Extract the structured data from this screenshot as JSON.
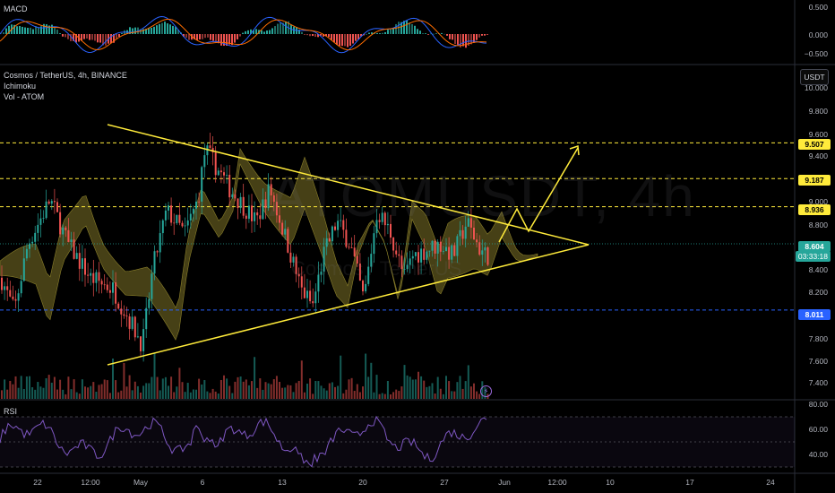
{
  "macd": {
    "title": "MACD",
    "ticks": [
      "0.500",
      "0.000",
      "−0.500"
    ]
  },
  "main": {
    "symbol_line": "Cosmos / TetherUS, 4h, BINANCE",
    "indicators": [
      "Ichimoku",
      "Vol - ATOM"
    ],
    "currency": "USDT",
    "watermark": "ATOMUSDT, 4h",
    "watermark_sub": "Cosmos / TetherUS",
    "ticks": [
      "10.000",
      "9.800",
      "9.600",
      "9.400",
      "9.200",
      "9.000",
      "8.800",
      "8.600",
      "8.400",
      "8.200",
      "8.000",
      "7.800",
      "7.600",
      "7.400"
    ],
    "levels": [
      {
        "value": "9.507",
        "style": "yellow"
      },
      {
        "value": "9.187",
        "style": "yellow"
      },
      {
        "value": "8.936",
        "style": "yellow"
      },
      {
        "value": "8.011",
        "style": "blue"
      }
    ],
    "last_price": "8.604",
    "countdown": "03:33:18",
    "flash_icon": "lightning-icon"
  },
  "rsi": {
    "title": "RSI",
    "ticks": [
      "80.00",
      "60.00",
      "40.00"
    ]
  },
  "xaxis": [
    "22",
    "12:00",
    "May",
    "6",
    "13",
    "20",
    "27",
    "Jun",
    "12:00",
    "10",
    "17",
    "24"
  ],
  "colors": {
    "up": "#26a69a",
    "down": "#ef5350",
    "trendline": "#ffeb3b",
    "cloud": "#6b6322",
    "level_blue": "#2962ff",
    "rsi": "#7e57c2",
    "macd": "#2962ff",
    "signal": "#ff6d00"
  }
}
